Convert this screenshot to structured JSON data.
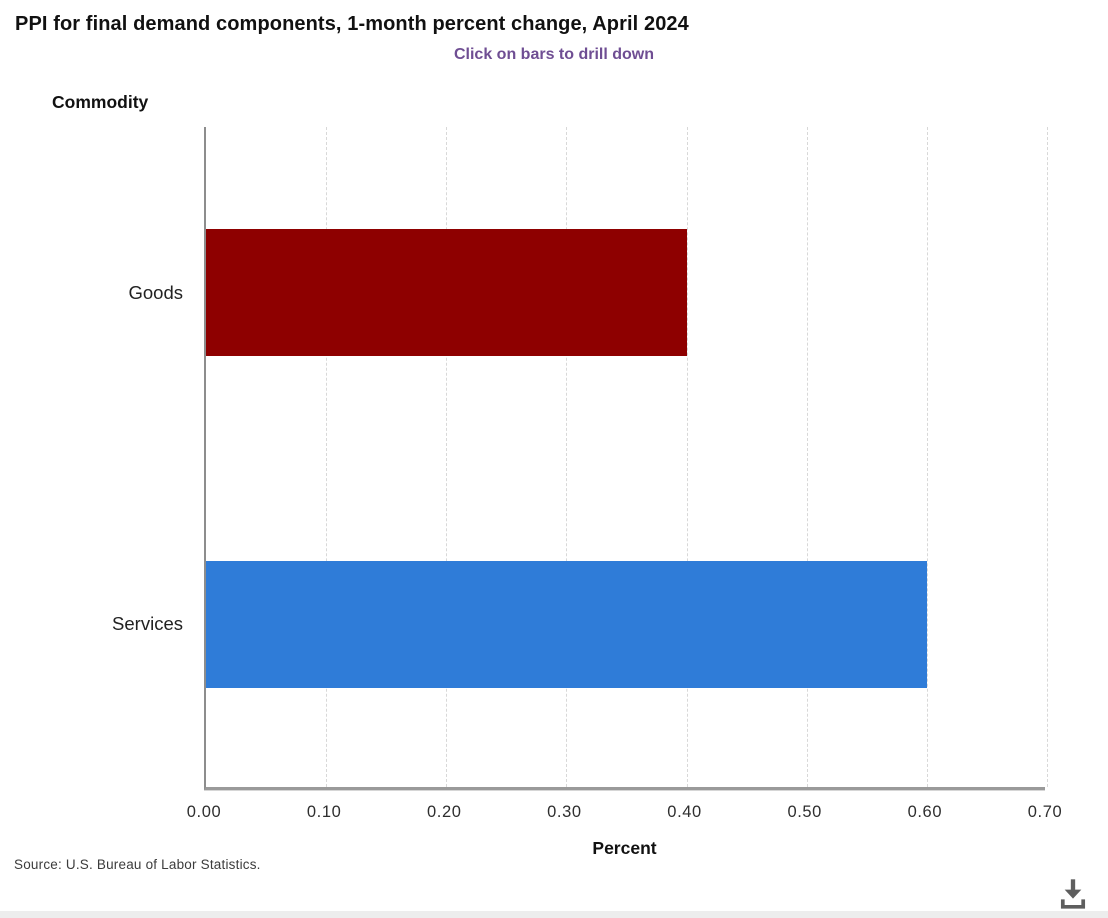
{
  "chart_data": {
    "type": "bar",
    "orientation": "horizontal",
    "title": "PPI for final demand components, 1-month percent change, April 2024",
    "subtitle": "Click on bars to drill down",
    "ylabel": "Commodity",
    "xlabel": "Percent",
    "categories": [
      "Goods",
      "Services"
    ],
    "values": [
      0.4,
      0.6
    ],
    "bar_colors": [
      "#8e0000",
      "#2f7cd8"
    ],
    "xlim": [
      0.0,
      0.7
    ],
    "xticks": [
      0.0,
      0.1,
      0.2,
      0.3,
      0.4,
      0.5,
      0.6,
      0.7
    ],
    "xtick_labels": [
      "0.00",
      "0.10",
      "0.20",
      "0.30",
      "0.40",
      "0.50",
      "0.60",
      "0.70"
    ],
    "grid": "vertical-dashed",
    "legend": "none"
  },
  "colors": {
    "title": "#111111",
    "subtitle_accent": "#6f4e93",
    "goods_bar": "#8e0000",
    "services_bar": "#2f7cd8",
    "axis_line": "#8d8d8d",
    "gridline": "#d8d8d8"
  },
  "footer": {
    "source": "Source: U.S. Bureau of Labor Statistics.",
    "download_icon": "download-icon"
  }
}
